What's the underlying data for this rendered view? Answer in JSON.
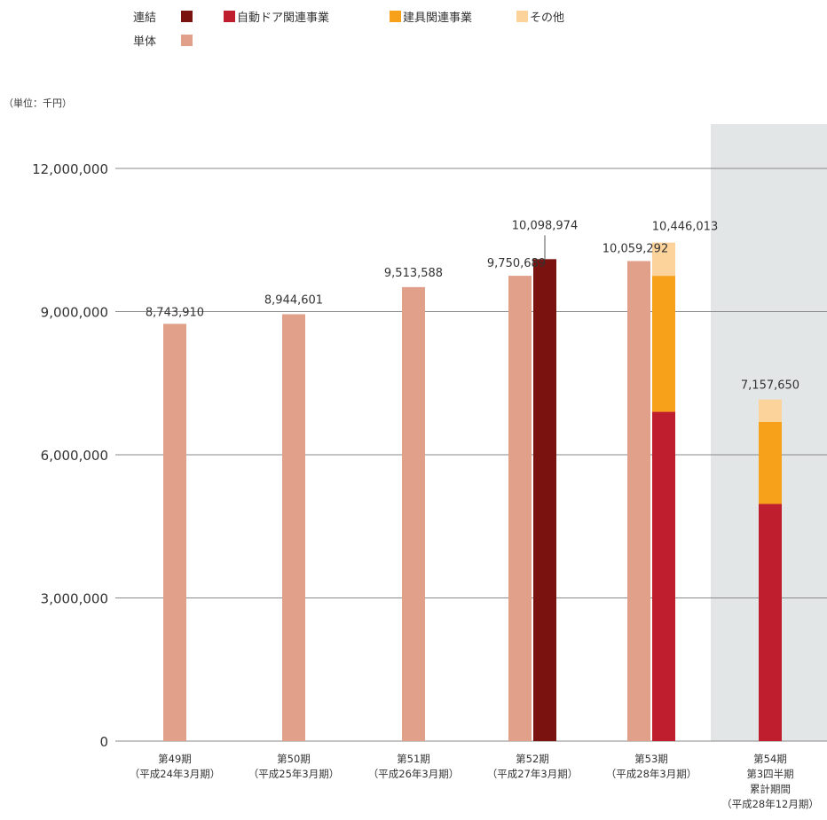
{
  "legend": {
    "row1_label": "連結",
    "row2_label": "単体",
    "items": [
      {
        "name": "",
        "color": "#7a1310"
      },
      {
        "name": "自動ドア関連事業",
        "color": "#be1e2d"
      },
      {
        "name": "建具関連事業",
        "color": "#f7a01a"
      },
      {
        "name": "その他",
        "color": "#fcd39b"
      }
    ],
    "standalone_color": "#e0a08a"
  },
  "unit_label": "（単位：千円）",
  "chart_data": {
    "type": "bar",
    "ylim": [
      0,
      12000000
    ],
    "yticks": [
      {
        "value": 0,
        "label": "0"
      },
      {
        "value": 3000000,
        "label": "3,000,000"
      },
      {
        "value": 6000000,
        "label": "6,000,000"
      },
      {
        "value": 9000000,
        "label": "9,000,000"
      },
      {
        "value": 12000000,
        "label": "12,000,000"
      }
    ],
    "categories": [
      {
        "lines": [
          "第49期",
          "（平成24年3月期）"
        ]
      },
      {
        "lines": [
          "第50期",
          "（平成25年3月期）"
        ]
      },
      {
        "lines": [
          "第51期",
          "（平成26年3月期）"
        ]
      },
      {
        "lines": [
          "第52期",
          "（平成27年3月期）"
        ]
      },
      {
        "lines": [
          "第53期",
          "（平成28年3月期）"
        ]
      },
      {
        "lines": [
          "第54期",
          "第3四半期",
          "累計期間",
          "（平成28年12月期）"
        ]
      }
    ],
    "standalone": [
      {
        "value": 8743910,
        "label": "8,743,910"
      },
      {
        "value": 8944601,
        "label": "8,944,601"
      },
      {
        "value": 9513588,
        "label": "9,513,588"
      },
      {
        "value": 9750689,
        "label": "9,750,689"
      },
      {
        "value": 10059292,
        "label": "10,059,292"
      },
      null
    ],
    "consolidated_total": [
      null,
      null,
      null,
      {
        "value": 10098974,
        "label": "10,098,974"
      },
      {
        "value": 10446013,
        "label": "10,446,013"
      },
      {
        "value": 7157650,
        "label": "7,157,650"
      }
    ],
    "consolidated_breakdown": [
      null,
      null,
      null,
      null,
      {
        "auto_door": 6900000,
        "fittings": 2850000,
        "other": 696013
      },
      {
        "auto_door": 4970000,
        "fittings": 1720000,
        "other": 467650
      }
    ],
    "highlighted_category_index": 5,
    "colors": {
      "highlight_bg": "#e3e6e7",
      "gridline": "#8a8a8a"
    }
  }
}
